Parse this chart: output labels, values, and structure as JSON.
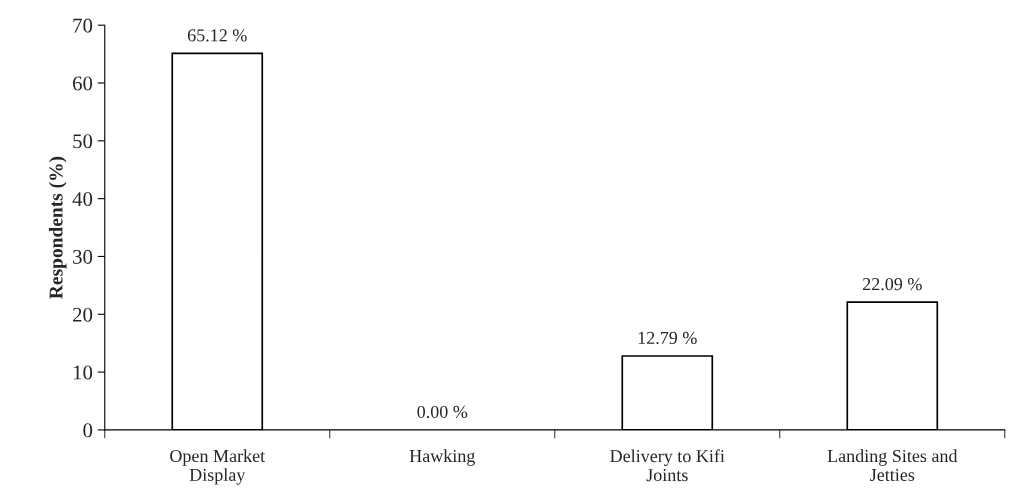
{
  "chart_data": {
    "type": "bar",
    "ylabel": "Respondents (%)",
    "categories": [
      "Open Market\nDisplay",
      "Hawking",
      "Delivery to Kifi\nJoints",
      "Landing Sites and\nJetties"
    ],
    "values": [
      65.12,
      0.0,
      12.79,
      22.09
    ],
    "value_labels": [
      "65.12 %",
      "0.00 %",
      "12.79 %",
      "22.09 %"
    ],
    "color": "#ffffff",
    "ylim": [
      0,
      70
    ],
    "yticks": [
      0,
      10,
      20,
      30,
      40,
      50,
      60,
      70
    ],
    "grid": false
  }
}
